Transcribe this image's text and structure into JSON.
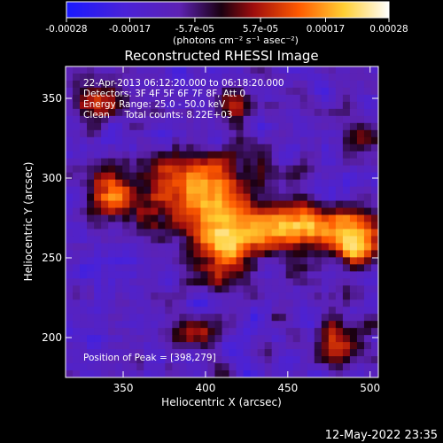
{
  "chart_data": {
    "type": "heatmap",
    "title": "Reconstructed RHESSI Image",
    "xlabel": "Heliocentric X (arcsec)",
    "ylabel": "Heliocentric Y (arcsec)",
    "xlim": [
      315,
      505
    ],
    "ylim": [
      175,
      370
    ],
    "x_ticks": [
      350,
      400,
      450,
      500
    ],
    "y_ticks": [
      200,
      250,
      300,
      350
    ],
    "colorbar": {
      "range": [
        -0.00028,
        0.00028
      ],
      "tick_values": [
        -0.00028,
        -0.00017,
        -5.7e-05,
        5.7e-05,
        0.00017,
        0.00028
      ],
      "tick_labels": [
        "-0.00028",
        "-0.00017",
        "-5.7e-05",
        "5.7e-05",
        "0.00017",
        "0.00028"
      ],
      "unit_label": "(photons cm⁻² s⁻¹ asec⁻²)",
      "colors": [
        "#1919ff",
        "#5d22b3",
        "#1a0010",
        "#9e0d0d",
        "#ff5a00",
        "#ffcf33",
        "#ffffff"
      ]
    },
    "annotations": [
      "22-Apr-2013 06:12:20.000 to 06:18:20.000",
      "Detectors: 3F 4F 5F 6F 7F 8F, Att 0",
      "Energy Range: 25.0 - 50.0 keV",
      "Clean     Total counts: 8.22E+03"
    ],
    "peak_label": "Position of Peak = [398,279]",
    "peak": [
      398,
      279
    ],
    "total_counts": 8220,
    "energy_range_kev": [
      25.0,
      50.0
    ]
  },
  "footer_timestamp": "12-May-2022 23:35"
}
